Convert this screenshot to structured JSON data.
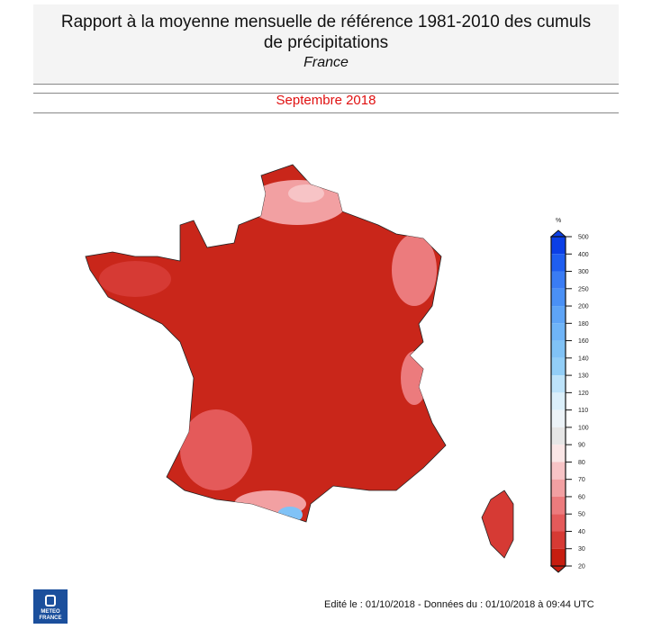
{
  "header": {
    "title": "Rapport à la moyenne mensuelle de référence 1981-2010 des cumuls de précipitations",
    "region": "France"
  },
  "period": "Septembre 2018",
  "legend": {
    "unit": "%",
    "ticks": [
      "500",
      "400",
      "300",
      "250",
      "200",
      "180",
      "160",
      "140",
      "130",
      "120",
      "110",
      "100",
      "90",
      "80",
      "70",
      "60",
      "50",
      "40",
      "30",
      "20"
    ],
    "colors": [
      "#0b3fe6",
      "#1f5ef0",
      "#3a7cf4",
      "#4a90f5",
      "#5ea4f6",
      "#6fb4f7",
      "#80c2f6",
      "#92cef7",
      "#bde3fa",
      "#dbeffa",
      "#ecf3f8",
      "#e6e6e6",
      "#fae6e6",
      "#f7c4c6",
      "#f2a0a2",
      "#ec7b7d",
      "#e45a5a",
      "#d63a34",
      "#c71e10"
    ]
  },
  "footer": {
    "edit_info": "Edité le : 01/10/2018 - Données du : 01/10/2018 à 09:44 UTC",
    "logo_text": "METEO FRANCE"
  }
}
